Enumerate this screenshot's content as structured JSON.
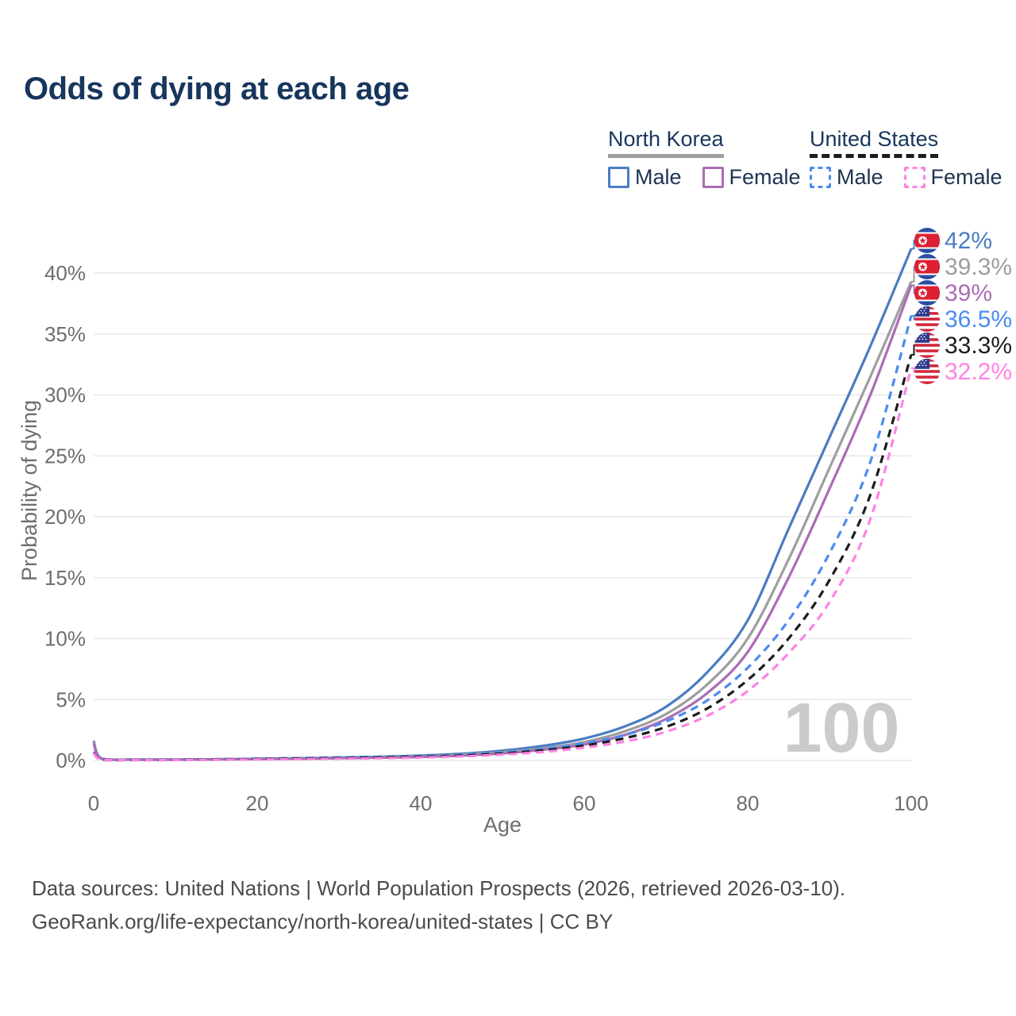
{
  "title": "Odds of dying at each age",
  "legend": {
    "groups": [
      {
        "country": "North Korea",
        "line_style": "solid",
        "line_color": "#9e9e9e",
        "items": [
          {
            "label": "Male",
            "color": "#4a7cc2",
            "dashed": false
          },
          {
            "label": "Female",
            "color": "#ab6db4",
            "dashed": false
          }
        ]
      },
      {
        "country": "United States",
        "line_style": "dashed",
        "line_color": "#1c1c1c",
        "items": [
          {
            "label": "Male",
            "color": "#4b8bf0",
            "dashed": true
          },
          {
            "label": "Female",
            "color": "#ff82e3",
            "dashed": true
          }
        ]
      }
    ]
  },
  "chart_data": {
    "type": "line",
    "title": "Odds of dying at each age",
    "xlabel": "Age",
    "ylabel": "Probability of dying",
    "xlim": [
      0,
      100
    ],
    "ylim": [
      0,
      43
    ],
    "grid": "horizontal",
    "legend_position": "top-right",
    "watermark": "100",
    "x_ticks": [
      {
        "value": 0,
        "label": "0"
      },
      {
        "value": 20,
        "label": "20"
      },
      {
        "value": 40,
        "label": "40"
      },
      {
        "value": 60,
        "label": "60"
      },
      {
        "value": 80,
        "label": "80"
      },
      {
        "value": 100,
        "label": "100"
      }
    ],
    "y_ticks": [
      {
        "value": 0,
        "label": "0%"
      },
      {
        "value": 5,
        "label": "5%"
      },
      {
        "value": 10,
        "label": "10%"
      },
      {
        "value": 15,
        "label": "15%"
      },
      {
        "value": 20,
        "label": "20%"
      },
      {
        "value": 25,
        "label": "25%"
      },
      {
        "value": 30,
        "label": "30%"
      },
      {
        "value": 35,
        "label": "35%"
      },
      {
        "value": 40,
        "label": "40%"
      }
    ],
    "ages": [
      0,
      1,
      5,
      10,
      15,
      20,
      25,
      30,
      35,
      40,
      45,
      50,
      55,
      60,
      65,
      70,
      75,
      80,
      85,
      90,
      95,
      100
    ],
    "series": [
      {
        "name": "North Korea Male",
        "color": "#4a7cc2",
        "dashed": false,
        "flag": "kp",
        "end_label": "42%",
        "values": [
          1.6,
          0.15,
          0.08,
          0.08,
          0.1,
          0.14,
          0.18,
          0.24,
          0.3,
          0.4,
          0.55,
          0.8,
          1.2,
          1.8,
          2.8,
          4.4,
          7.2,
          11.5,
          19.0,
          26.5,
          34.0,
          42.0
        ]
      },
      {
        "name": "North Korea",
        "color": "#9e9e9e",
        "dashed": false,
        "flag": "kp",
        "end_label": "39.3%",
        "values": [
          1.5,
          0.13,
          0.07,
          0.07,
          0.09,
          0.12,
          0.16,
          0.21,
          0.26,
          0.34,
          0.47,
          0.68,
          1.0,
          1.5,
          2.4,
          3.8,
          6.2,
          10.0,
          16.5,
          24.0,
          31.5,
          39.3
        ]
      },
      {
        "name": "North Korea Female",
        "color": "#ab6db4",
        "dashed": false,
        "flag": "kp",
        "end_label": "39%",
        "values": [
          1.4,
          0.12,
          0.06,
          0.06,
          0.08,
          0.11,
          0.14,
          0.18,
          0.23,
          0.29,
          0.4,
          0.58,
          0.88,
          1.3,
          2.1,
          3.4,
          5.5,
          8.9,
          15.0,
          22.3,
          30.0,
          39.0
        ]
      },
      {
        "name": "United States Male",
        "color": "#4b8bf0",
        "dashed": true,
        "flag": "us",
        "end_label": "36.5%",
        "values": [
          0.7,
          0.06,
          0.04,
          0.05,
          0.09,
          0.14,
          0.19,
          0.24,
          0.29,
          0.35,
          0.46,
          0.65,
          0.95,
          1.4,
          2.1,
          3.2,
          4.9,
          7.6,
          11.5,
          17.0,
          24.5,
          36.5
        ]
      },
      {
        "name": "United States",
        "color": "#1c1c1c",
        "dashed": true,
        "flag": "us",
        "end_label": "33.3%",
        "values": [
          0.65,
          0.05,
          0.03,
          0.04,
          0.07,
          0.11,
          0.15,
          0.19,
          0.24,
          0.3,
          0.4,
          0.57,
          0.83,
          1.22,
          1.83,
          2.75,
          4.25,
          6.6,
          10.0,
          14.8,
          21.8,
          33.3
        ]
      },
      {
        "name": "United States Female",
        "color": "#ff82e3",
        "dashed": true,
        "flag": "us",
        "end_label": "32.2%",
        "values": [
          0.6,
          0.05,
          0.03,
          0.03,
          0.05,
          0.08,
          0.11,
          0.14,
          0.18,
          0.24,
          0.33,
          0.48,
          0.7,
          1.05,
          1.55,
          2.35,
          3.65,
          5.7,
          8.8,
          13.0,
          19.8,
          32.2
        ]
      }
    ]
  },
  "footer": {
    "line1": "Data sources: United Nations | World Population Prospects (2026, retrieved 2026-03-10).",
    "line2": "GeoRank.org/life-expectancy/north-korea/united-states | CC BY"
  }
}
